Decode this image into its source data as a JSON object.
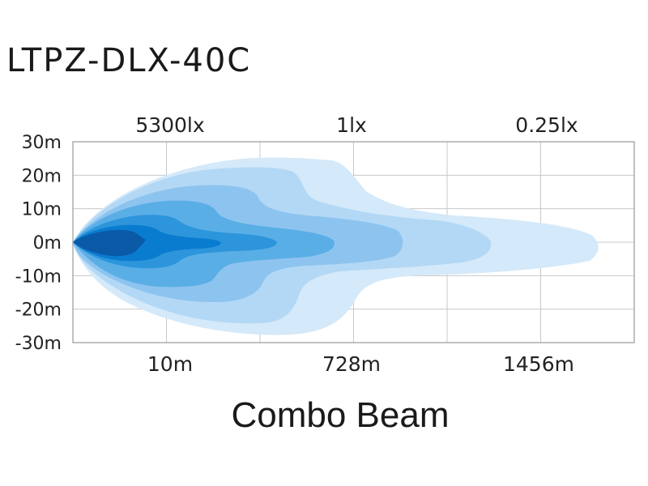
{
  "title": "LTPZ-DLX-40C",
  "beam_name": "Combo Beam",
  "chart_data": {
    "type": "area",
    "title": "LTPZ-DLX-40C",
    "caption": "Combo Beam",
    "lux_labels": [
      "5300lx",
      "1lx",
      "0.25lx"
    ],
    "x_tick_labels": [
      "10m",
      "728m",
      "1456m"
    ],
    "y_ticks": [
      30,
      20,
      10,
      0,
      -10,
      -20,
      -30
    ],
    "y_tick_labels": [
      "30m",
      "20m",
      "10m",
      "0m",
      "-10m",
      "-20m",
      "-30m"
    ],
    "ylim": [
      -30,
      30
    ],
    "grid": true,
    "colors": [
      "#d4e9f9",
      "#b3d8f5",
      "#8dc4ef",
      "#5aaee6",
      "#2c95db",
      "#0a7ccf",
      "#0a5aa8"
    ]
  }
}
